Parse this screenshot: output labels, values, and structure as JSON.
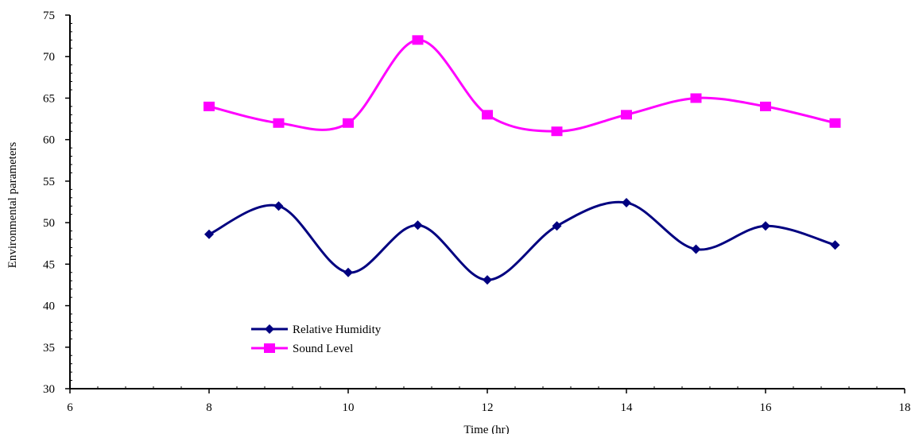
{
  "chart_data": {
    "type": "line",
    "title": "",
    "xlabel": "Time (hr)",
    "ylabel": "Environmental parameters",
    "xlim": [
      6,
      18
    ],
    "ylim": [
      30,
      75
    ],
    "xticks": [
      6,
      8,
      10,
      12,
      14,
      16,
      18
    ],
    "yticks": [
      30,
      35,
      40,
      45,
      50,
      55,
      60,
      65,
      70,
      75
    ],
    "grid": false,
    "smooth": true,
    "legend_position": "lower-left",
    "series": [
      {
        "name": "Relative Humidity",
        "color": "#000080",
        "marker": "diamond",
        "x": [
          8,
          9,
          10,
          11,
          12,
          13,
          14,
          15,
          16,
          17
        ],
        "y": [
          48.6,
          52.0,
          44.0,
          49.7,
          43.1,
          49.6,
          52.4,
          46.8,
          49.6,
          47.3
        ]
      },
      {
        "name": "Sound Level",
        "color": "#ff00ff",
        "marker": "square",
        "x": [
          8,
          9,
          10,
          11,
          12,
          13,
          14,
          15,
          16,
          17
        ],
        "y": [
          64,
          62,
          62,
          72,
          63,
          61,
          63,
          65,
          64,
          62
        ]
      }
    ]
  }
}
